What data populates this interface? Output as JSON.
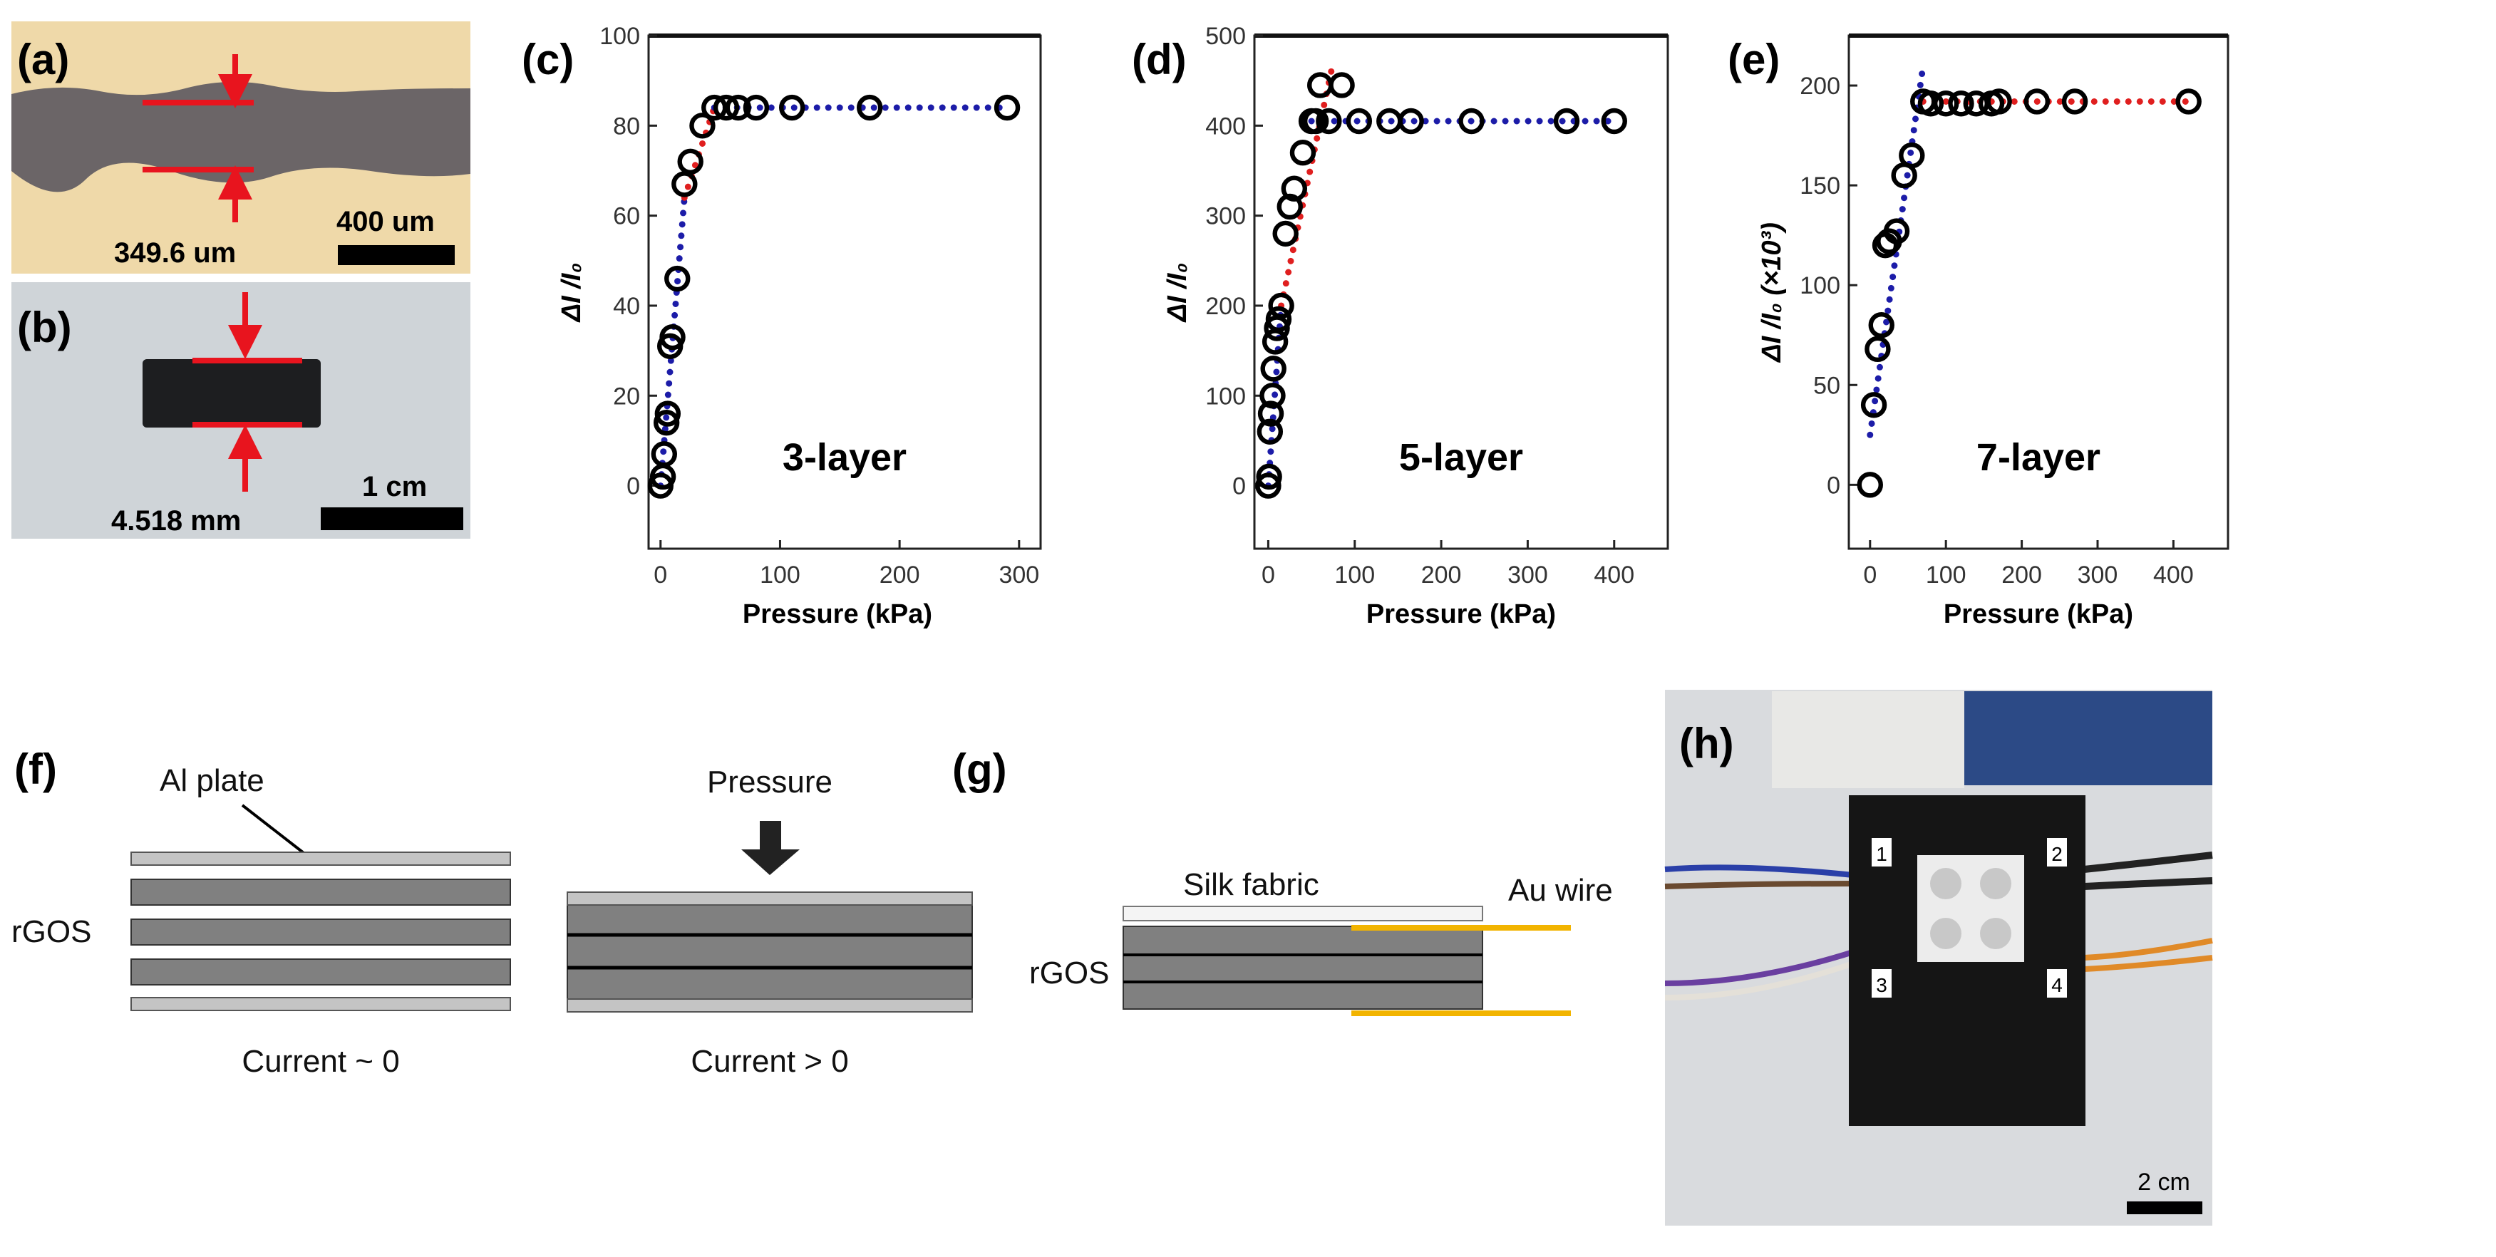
{
  "panels": {
    "a": {
      "label": "(a)",
      "thickness": "349.6 um",
      "scale": "400 um"
    },
    "b": {
      "label": "(b)",
      "thickness": "4.518 mm",
      "scale": "1 cm"
    },
    "f": {
      "label": "(f)",
      "al_plate": "Al plate",
      "rgos": "rGOS",
      "pressure": "Pressure",
      "current_off": "Current ~ 0",
      "current_on": "Current > 0"
    },
    "g": {
      "label": "(g)",
      "silk": "Silk fabric",
      "au_wire": "Au wire",
      "rgos": "rGOS"
    },
    "h": {
      "label": "(h)",
      "pixel_labels": [
        "1",
        "2",
        "3",
        "4"
      ],
      "scale": "2 cm"
    }
  },
  "colors": {
    "fit_blue": "#1c1ca8",
    "fit_red": "#e01f1f",
    "marker": "#000000"
  },
  "chart_data": [
    {
      "panel": "(c)",
      "type": "scatter",
      "annotation": "3-layer",
      "xlabel": "Pressure (kPa)",
      "ylabel": "ΔI /I₀",
      "xlim": [
        -10,
        318
      ],
      "ylim": [
        -14,
        100
      ],
      "xticks": [
        0,
        100,
        200,
        300
      ],
      "yticks": [
        0,
        20,
        40,
        60,
        80,
        100
      ],
      "points": [
        [
          0,
          0
        ],
        [
          2,
          2
        ],
        [
          3,
          7
        ],
        [
          5,
          14
        ],
        [
          6,
          16
        ],
        [
          8,
          31
        ],
        [
          10,
          33
        ],
        [
          14,
          46
        ],
        [
          20,
          67
        ],
        [
          25,
          72
        ],
        [
          35,
          80
        ],
        [
          45,
          84
        ],
        [
          55,
          84
        ],
        [
          65,
          84
        ],
        [
          80,
          84
        ],
        [
          110,
          84
        ],
        [
          175,
          84
        ],
        [
          290,
          84
        ]
      ],
      "fits": [
        {
          "color": "blue",
          "points": [
            [
              0,
              0
            ],
            [
              20,
              64
            ]
          ]
        },
        {
          "color": "red",
          "points": [
            [
              20,
              64
            ],
            [
              45,
              84
            ]
          ]
        },
        {
          "color": "blue",
          "points": [
            [
              45,
              84
            ],
            [
              290,
              84
            ]
          ]
        }
      ]
    },
    {
      "panel": "(d)",
      "type": "scatter",
      "annotation": "5-layer",
      "xlabel": "Pressure (kPa)",
      "ylabel": "ΔI /I₀",
      "xlim": [
        -16,
        462
      ],
      "ylim": [
        -70,
        500
      ],
      "xticks": [
        0,
        100,
        200,
        300,
        400
      ],
      "yticks": [
        0,
        100,
        200,
        300,
        400,
        500
      ],
      "points": [
        [
          0,
          0
        ],
        [
          1,
          10
        ],
        [
          2,
          60
        ],
        [
          3,
          80
        ],
        [
          5,
          100
        ],
        [
          6,
          130
        ],
        [
          8,
          160
        ],
        [
          10,
          175
        ],
        [
          12,
          185
        ],
        [
          15,
          200
        ],
        [
          20,
          280
        ],
        [
          25,
          310
        ],
        [
          30,
          330
        ],
        [
          40,
          370
        ],
        [
          50,
          405
        ],
        [
          55,
          405
        ],
        [
          60,
          445
        ],
        [
          85,
          445
        ],
        [
          70,
          405
        ],
        [
          105,
          405
        ],
        [
          140,
          405
        ],
        [
          165,
          405
        ],
        [
          235,
          405
        ],
        [
          345,
          405
        ],
        [
          400,
          405
        ]
      ],
      "fits": [
        {
          "color": "blue",
          "points": [
            [
              0,
              0
            ],
            [
              15,
              200
            ]
          ]
        },
        {
          "color": "red",
          "points": [
            [
              15,
              200
            ],
            [
              75,
              470
            ]
          ]
        },
        {
          "color": "blue",
          "points": [
            [
              50,
              405
            ],
            [
              400,
              405
            ]
          ]
        }
      ]
    },
    {
      "panel": "(e)",
      "type": "scatter",
      "annotation": "7-layer",
      "xlabel": "Pressure (kPa)",
      "ylabel": "ΔI /I₀ (×10³)",
      "xlim": [
        -28,
        472
      ],
      "ylim": [
        -32,
        225
      ],
      "xticks": [
        0,
        100,
        200,
        300,
        400
      ],
      "yticks": [
        0,
        50,
        100,
        150,
        200
      ],
      "points": [
        [
          0,
          0
        ],
        [
          5,
          40
        ],
        [
          10,
          68
        ],
        [
          15,
          80
        ],
        [
          20,
          120
        ],
        [
          25,
          122
        ],
        [
          35,
          127
        ],
        [
          45,
          155
        ],
        [
          55,
          165
        ],
        [
          70,
          192
        ],
        [
          80,
          191
        ],
        [
          100,
          191
        ],
        [
          120,
          191
        ],
        [
          140,
          191
        ],
        [
          160,
          191
        ],
        [
          170,
          192
        ],
        [
          220,
          192
        ],
        [
          270,
          192
        ],
        [
          420,
          192
        ]
      ],
      "fits": [
        {
          "color": "blue",
          "points": [
            [
              0,
              25
            ],
            [
              70,
              210
            ]
          ]
        },
        {
          "color": "red",
          "points": [
            [
              70,
              192
            ],
            [
              420,
              192
            ]
          ]
        }
      ]
    }
  ]
}
